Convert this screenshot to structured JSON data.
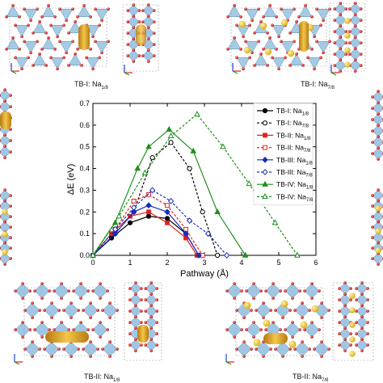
{
  "captions": {
    "top_left": {
      "base": "TB-I: Na",
      "sub": "1/8"
    },
    "top_right": {
      "base": "TB-I: Na",
      "sub": "7/8"
    },
    "bottom_left": {
      "base": "TB-II: Na",
      "sub": "1/8"
    },
    "bottom_right": {
      "base": "TB-II: Na",
      "sub": "7/8"
    }
  },
  "colors": {
    "octahedron": "#7fb3d8",
    "oxygen": "#cc2222",
    "sodium": "#e8c840",
    "sodium_path": "#d4a020"
  },
  "chart_data": {
    "type": "line",
    "xlabel": "Pathway (Å)",
    "ylabel": "ΔE (eV)",
    "xlim": [
      0,
      6
    ],
    "ylim": [
      0,
      0.7
    ],
    "xticks": [
      0,
      1,
      2,
      3,
      4,
      5,
      6
    ],
    "yticks": [
      0,
      0.1,
      0.2,
      0.3,
      0.4,
      0.5,
      0.6,
      0.7
    ],
    "legend_position": "right",
    "series": [
      {
        "name": "TB-I: Na",
        "sub": "1/8",
        "color": "#000000",
        "dashed": false,
        "marker": "circle",
        "filled": true,
        "x": [
          0,
          0.5,
          1.0,
          1.5,
          2.0,
          2.5,
          2.85
        ],
        "y": [
          0,
          0.08,
          0.15,
          0.18,
          0.17,
          0.1,
          0
        ]
      },
      {
        "name": "TB-I: Na",
        "sub": "7/8",
        "color": "#000000",
        "dashed": true,
        "marker": "circle",
        "filled": false,
        "x": [
          0,
          0.6,
          1.1,
          1.6,
          2.1,
          2.6,
          2.95,
          3.35
        ],
        "y": [
          0,
          0.1,
          0.2,
          0.45,
          0.52,
          0.4,
          0.2,
          0
        ]
      },
      {
        "name": "TB-II: Na",
        "sub": "1/8",
        "color": "#dd2222",
        "dashed": false,
        "marker": "square",
        "filled": true,
        "x": [
          0,
          0.5,
          1.0,
          1.5,
          2.0,
          2.5,
          2.8
        ],
        "y": [
          0,
          0.1,
          0.18,
          0.2,
          0.15,
          0.08,
          0
        ]
      },
      {
        "name": "TB-II: Na",
        "sub": "7/8",
        "color": "#dd2222",
        "dashed": true,
        "marker": "square",
        "filled": false,
        "x": [
          0,
          0.6,
          1.1,
          1.5,
          2.0,
          2.5,
          2.95
        ],
        "y": [
          0,
          0.12,
          0.25,
          0.28,
          0.23,
          0.12,
          0
        ]
      },
      {
        "name": "TB-III: Na",
        "sub": "1/8",
        "color": "#1a2dbb",
        "dashed": false,
        "marker": "diamond",
        "filled": true,
        "x": [
          0,
          0.6,
          1.1,
          1.5,
          2.0,
          2.5,
          2.85
        ],
        "y": [
          0,
          0.1,
          0.2,
          0.23,
          0.2,
          0.1,
          0
        ]
      },
      {
        "name": "TB-III: Na",
        "sub": "7/8",
        "color": "#1a2dbb",
        "dashed": true,
        "marker": "diamond",
        "filled": false,
        "x": [
          0,
          0.6,
          1.1,
          1.6,
          2.1,
          2.6,
          3.1,
          3.6
        ],
        "y": [
          0,
          0.12,
          0.22,
          0.3,
          0.25,
          0.16,
          0.1,
          0
        ]
      },
      {
        "name": "TB-IV: Na",
        "sub": "1/8",
        "color": "#1f8f1f",
        "dashed": false,
        "marker": "triangle",
        "filled": true,
        "x": [
          0,
          0.6,
          1.2,
          1.5,
          2.05,
          2.7,
          3.35,
          4.1
        ],
        "y": [
          0,
          0.15,
          0.4,
          0.5,
          0.58,
          0.48,
          0.2,
          0
        ]
      },
      {
        "name": "TB-IV: Na",
        "sub": "7/8",
        "color": "#1f8f1f",
        "dashed": true,
        "marker": "triangle",
        "filled": false,
        "x": [
          0,
          0.7,
          1.4,
          2.1,
          2.8,
          3.5,
          4.2,
          4.9,
          5.5
        ],
        "y": [
          0,
          0.18,
          0.38,
          0.55,
          0.65,
          0.5,
          0.33,
          0.15,
          0
        ]
      }
    ]
  }
}
